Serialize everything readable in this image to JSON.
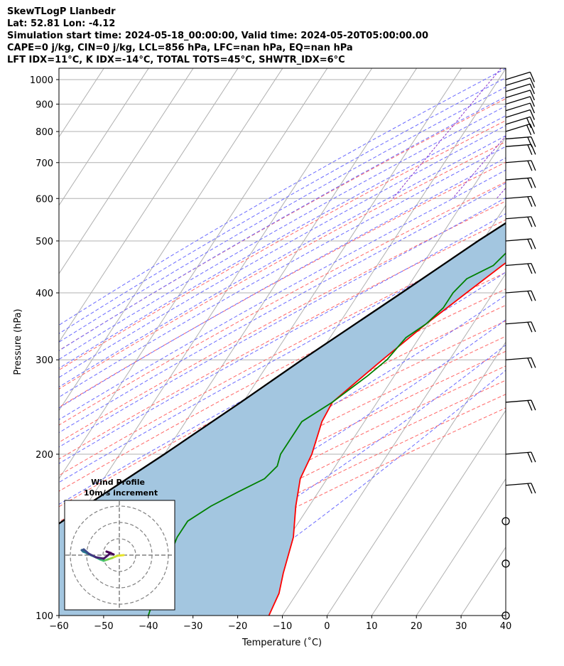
{
  "header": {
    "line1": "SkewTLogP Llanbedr",
    "line2": "Lat: 52.81   Lon: -4.12",
    "line3": "Simulation start time: 2024-05-18_00:00:00, Valid time: 2024-05-20T05:00:00.00",
    "line4": "CAPE=0 j/kg, CIN=0 j/kg, LCL=856 hPa, LFC=nan hPa, EQ=nan hPa",
    "line5": "LFT IDX=11°C, K IDX=-14°C, TOTAL TOTS=45°C, SHWTR_IDX=6°C"
  },
  "inset": {
    "title_line1": "Wind Profile",
    "title_line2": "10m/s increment"
  },
  "chart_data": {
    "type": "line",
    "xlabel": "Temperature (˚C)",
    "ylabel": "Pressure (hPa)",
    "xlim": [
      -60,
      40
    ],
    "ylim": [
      1050,
      100
    ],
    "y_scale": "log",
    "skew": true,
    "grid": true,
    "x_ticks": [
      -60,
      -50,
      -40,
      -30,
      -20,
      -10,
      0,
      10,
      20,
      30,
      40
    ],
    "y_ticks": [
      100,
      200,
      300,
      400,
      500,
      600,
      700,
      800,
      900,
      1000
    ],
    "colors": {
      "temperature": "#ff0000",
      "dewpoint": "#008000",
      "parcel": "#000000",
      "shading": "#a3c6e0",
      "dry_adiabat": "#ff6666",
      "moist_adiabat": "#6b6bff",
      "mixing_ratio": "#8833cc",
      "isotherm": "#b0b0b0"
    },
    "series": [
      {
        "key": "temperature",
        "pressure": [
          1000,
          990,
          975,
          950,
          925,
          900,
          875,
          850,
          800,
          750,
          700,
          650,
          600,
          550,
          500,
          450,
          400,
          350,
          300,
          250,
          230,
          200,
          180,
          160,
          140,
          120,
          110,
          100
        ],
        "values": [
          14,
          16,
          17,
          16.5,
          14.5,
          12.5,
          10.3,
          9,
          9,
          8.5,
          7,
          4,
          0,
          -4,
          -8,
          -12,
          -16,
          -20.5,
          -25,
          -30,
          -29.5,
          -27,
          -26,
          -23,
          -19,
          -16,
          -14,
          -13
        ]
      },
      {
        "key": "dewpoint",
        "pressure": [
          1000,
          990,
          975,
          950,
          925,
          900,
          875,
          850,
          825,
          810,
          800,
          780,
          760,
          730,
          700,
          680,
          650,
          600,
          550,
          500,
          450,
          425,
          400,
          375,
          350,
          330,
          300,
          280,
          250,
          230,
          200,
          190,
          180,
          170,
          160,
          150,
          140,
          120,
          100
        ],
        "values": [
          5.5,
          3,
          2.5,
          4,
          5.5,
          6,
          7,
          8,
          -0.5,
          -2,
          -9,
          -12,
          -14.5,
          -17,
          -19,
          -16,
          -12,
          -12,
          -12,
          -12,
          -14,
          -18,
          -19,
          -19,
          -20.5,
          -23,
          -24,
          -26,
          -30,
          -34,
          -34,
          -33,
          -34,
          -38,
          -42,
          -45,
          -45,
          -43,
          -40
        ]
      },
      {
        "key": "parcel",
        "pressure": [
          1000,
          950,
          900,
          856,
          800,
          700,
          600,
          500,
          400,
          300,
          250,
          200,
          150,
          120,
          100
        ],
        "values": [
          14,
          9.5,
          5,
          1.5,
          -0.5,
          -6,
          -12.5,
          -21,
          -30.5,
          -43,
          -50.5,
          -60,
          -73,
          -83,
          -91
        ]
      }
    ],
    "wind_barbs_pressure": [
      1000,
      975,
      950,
      925,
      900,
      875,
      850,
      825,
      800,
      775,
      750,
      700,
      650,
      600,
      550,
      500,
      450,
      400,
      350,
      300,
      250,
      200,
      175,
      150,
      125,
      100
    ]
  }
}
